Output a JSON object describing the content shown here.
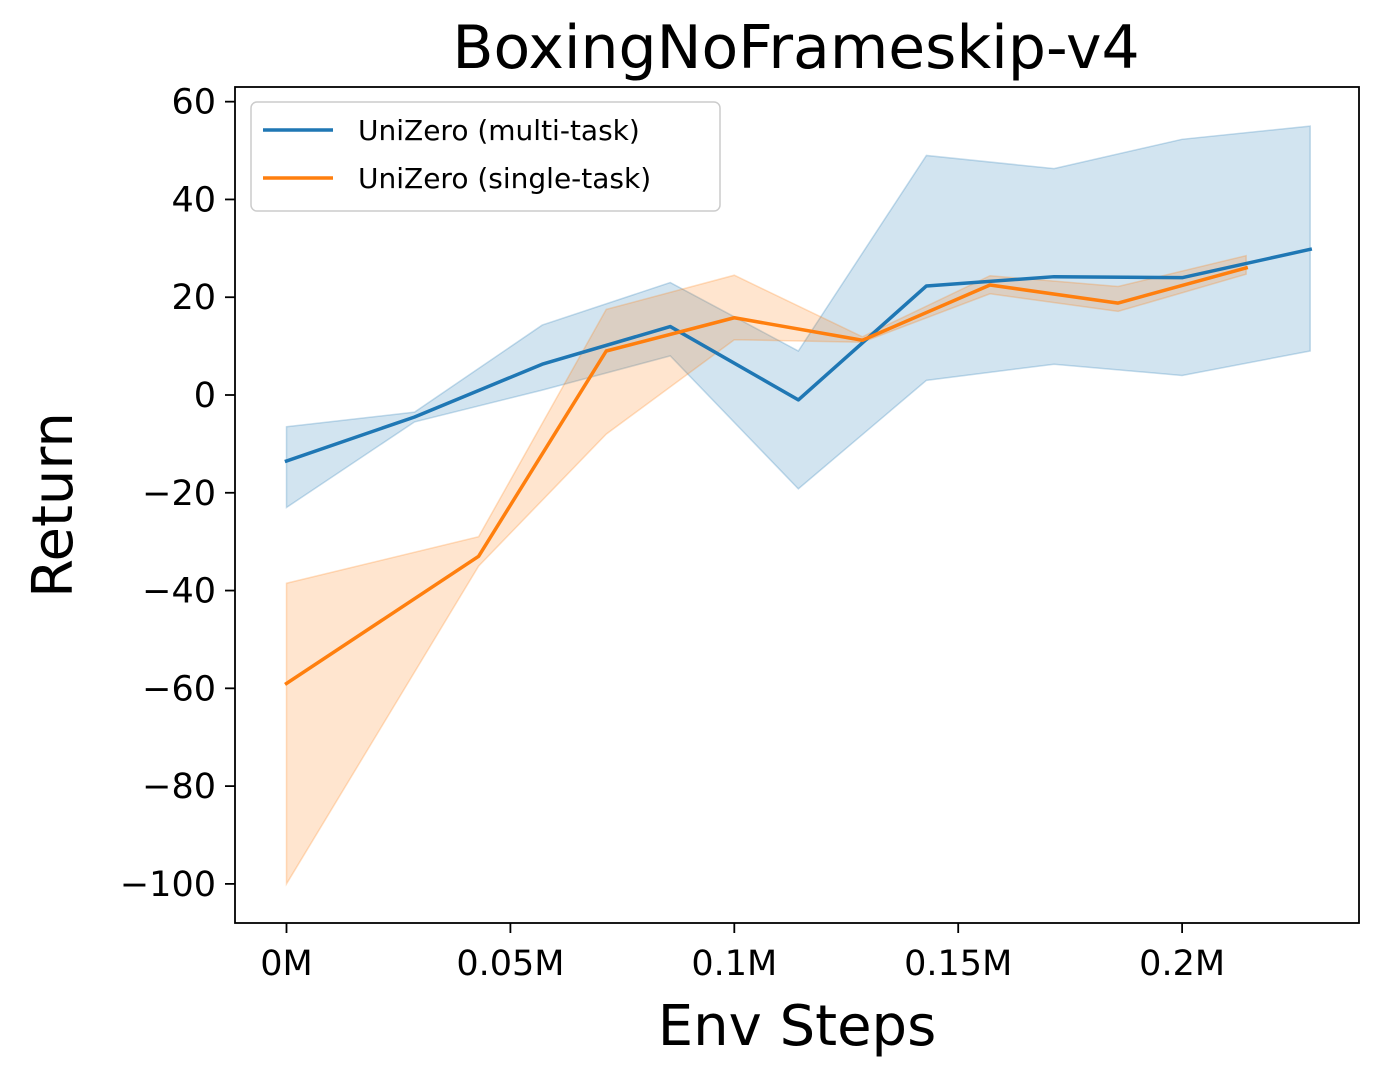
{
  "chart_data": {
    "type": "line",
    "title": "BoxingNoFrameskip-v4",
    "xlabel": "Env Steps",
    "ylabel": "Return",
    "xlim": [
      -0.0115,
      0.2395
    ],
    "ylim": [
      -108,
      63
    ],
    "x_ticks": [
      {
        "value": 0,
        "label": "0M"
      },
      {
        "value": 0.05,
        "label": "0.05M"
      },
      {
        "value": 0.1,
        "label": "0.1M"
      },
      {
        "value": 0.15,
        "label": "0.15M"
      },
      {
        "value": 0.2,
        "label": "0.2M"
      }
    ],
    "y_ticks": [
      {
        "value": 60,
        "label": "60"
      },
      {
        "value": 40,
        "label": "40"
      },
      {
        "value": 20,
        "label": "20"
      },
      {
        "value": 0,
        "label": "0"
      },
      {
        "value": -20,
        "label": "−20"
      },
      {
        "value": -40,
        "label": "−40"
      },
      {
        "value": -60,
        "label": "−60"
      },
      {
        "value": -80,
        "label": "−80"
      },
      {
        "value": -100,
        "label": "−100"
      }
    ],
    "grid": false,
    "legend_position": "top-left",
    "series": [
      {
        "name": "UniZero (multi-task)",
        "color": "#1f77b4",
        "x": [
          0,
          0.0286,
          0.0571,
          0.0857,
          0.1143,
          0.1429,
          0.1714,
          0.2,
          0.2286
        ],
        "y": [
          -13.5,
          -4.5,
          6.3,
          14.0,
          -1.0,
          22.3,
          24.2,
          24.0,
          29.8
        ],
        "lower": [
          -23.0,
          -5.5,
          1.0,
          8.0,
          -19.2,
          3.0,
          6.3,
          4.0,
          9.0
        ],
        "upper": [
          -6.5,
          -3.5,
          14.3,
          23.0,
          9.0,
          49.0,
          46.3,
          52.3,
          55.0
        ]
      },
      {
        "name": "UniZero (single-task)",
        "color": "#ff7f0e",
        "x": [
          0,
          0.0429,
          0.0714,
          0.1,
          0.1286,
          0.1571,
          0.1857,
          0.2143
        ],
        "y": [
          -59.0,
          -33.0,
          9.0,
          15.8,
          11.2,
          22.5,
          18.8,
          26.0
        ],
        "lower": [
          -100.0,
          -35.0,
          -8.0,
          11.3,
          10.8,
          20.7,
          17.1,
          24.7
        ],
        "upper": [
          -38.5,
          -29.0,
          17.5,
          24.5,
          11.9,
          24.4,
          22.2,
          28.5
        ]
      }
    ]
  }
}
